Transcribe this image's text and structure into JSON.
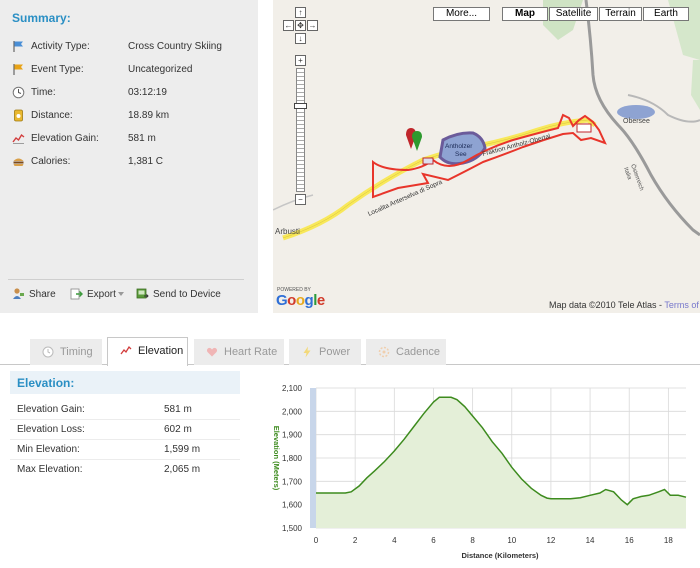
{
  "summary": {
    "title": "Summary:",
    "rows": [
      {
        "label": "Activity Type:",
        "value": "Cross Country Skiing",
        "icon": "activity-flag-icon"
      },
      {
        "label": "Event Type:",
        "value": "Uncategorized",
        "icon": "event-flag-icon"
      },
      {
        "label": "Time:",
        "value": "03:12:19",
        "icon": "clock-icon"
      },
      {
        "label": "Distance:",
        "value": "18.89 km",
        "icon": "distance-icon"
      },
      {
        "label": "Elevation Gain:",
        "value": "581 m",
        "icon": "elevation-icon"
      },
      {
        "label": "Calories:",
        "value": "1,381 C",
        "icon": "calories-icon"
      }
    ],
    "actions": {
      "share": "Share",
      "export": "Export",
      "send": "Send to Device"
    }
  },
  "map": {
    "buttons": {
      "more": "More...",
      "map": "Map",
      "satellite": "Satellite",
      "terrain": "Terrain",
      "earth": "Earth"
    },
    "active_button": "Map",
    "labels": {
      "lake": "Antholzer\nSee",
      "road1": "Localita Anterselva di Sopra",
      "road2": "Fraktion Antholz-Obertal",
      "place1": "Arbusti",
      "place2": "Obersee",
      "country": "Österreich\nItalia",
      "powered": "POWERED BY",
      "google": "Google",
      "mapdata": "Map data ©2010 Tele Atlas - ",
      "terms": "Terms of Us"
    },
    "colors": {
      "track": "#e8352b",
      "road": "#f8e85a",
      "water": "#8ea3d2"
    }
  },
  "tabs": [
    {
      "label": "Timing",
      "icon": "clock-icon",
      "active": false
    },
    {
      "label": "Elevation",
      "icon": "elevation-icon",
      "active": true
    },
    {
      "label": "Heart Rate",
      "icon": "heart-icon",
      "active": false
    },
    {
      "label": "Power",
      "icon": "lightning-icon",
      "active": false
    },
    {
      "label": "Cadence",
      "icon": "cadence-icon",
      "active": false
    }
  ],
  "elevation": {
    "title": "Elevation:",
    "rows": [
      {
        "label": "Elevation Gain:",
        "value": "581 m"
      },
      {
        "label": "Elevation Loss:",
        "value": "602 m"
      },
      {
        "label": "Min Elevation:",
        "value": "1,599 m"
      },
      {
        "label": "Max Elevation:",
        "value": "2,065 m"
      }
    ]
  },
  "chart_data": {
    "type": "area",
    "xlabel": "Distance (Kilometers)",
    "ylabel": "Elevation (Meters)",
    "xlim": [
      0,
      18.9
    ],
    "ylim": [
      1500,
      2100
    ],
    "xticks": [
      0,
      2,
      4,
      6,
      8,
      10,
      12,
      14,
      16,
      18
    ],
    "yticks": [
      1500,
      1600,
      1700,
      1800,
      1900,
      2000,
      2100
    ],
    "ytick_labels": [
      "1,500",
      "1,600",
      "1,700",
      "1,800",
      "1,900",
      "2,000",
      "2,100"
    ],
    "grid": true,
    "series": [
      {
        "x": [
          0,
          1.5,
          1.8,
          2.2,
          2.6,
          3.0,
          3.5,
          4.0,
          4.5,
          5.0,
          5.5,
          6.0,
          6.3,
          6.9,
          7.2,
          7.6,
          8.0,
          8.5,
          9.0,
          9.5,
          10.0,
          10.5,
          11.0,
          11.5,
          11.8,
          12.0,
          13.0,
          13.5,
          14.0,
          14.5,
          14.8,
          15.2,
          15.6,
          15.9,
          16.2,
          16.6,
          17.0,
          17.5,
          17.8,
          18.1,
          18.5,
          18.9
        ],
        "y": [
          1650,
          1650,
          1655,
          1680,
          1715,
          1745,
          1785,
          1830,
          1880,
          1935,
          1990,
          2040,
          2060,
          2060,
          2050,
          2020,
          1980,
          1930,
          1870,
          1820,
          1760,
          1710,
          1670,
          1640,
          1628,
          1625,
          1625,
          1630,
          1640,
          1650,
          1665,
          1655,
          1620,
          1600,
          1625,
          1635,
          1640,
          1655,
          1665,
          1640,
          1640,
          1632
        ]
      }
    ],
    "colors": {
      "line": "#3d8b1e",
      "fill": "#e4efd8",
      "grid": "#d9d9d9"
    }
  }
}
